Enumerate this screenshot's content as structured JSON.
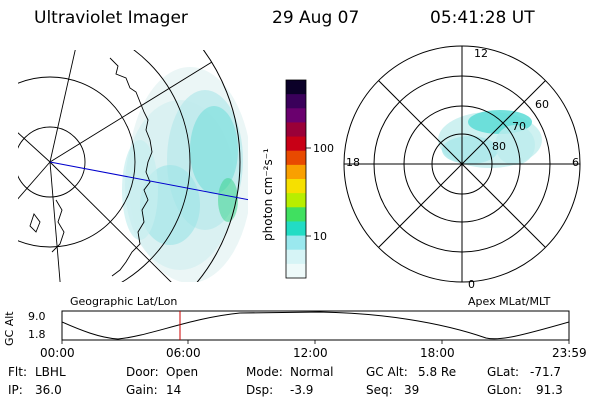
{
  "header": {
    "title": "Ultraviolet Imager",
    "date": "29 Aug 07",
    "time": "05:41:28 UT"
  },
  "left_panel": {
    "caption": "Geographic Lat/Lon"
  },
  "right_panel": {
    "caption": "Apex MLat/MLT",
    "mlt_labels": [
      "12",
      "18",
      "6",
      "0"
    ],
    "mlat_labels": [
      "60",
      "70",
      "80"
    ]
  },
  "colorbar": {
    "unit_label": "photon cm⁻²s⁻¹",
    "tick_labels": [
      "100",
      "10"
    ],
    "colors": [
      "#0b0028",
      "#3a005a",
      "#6a006e",
      "#9a0038",
      "#c80016",
      "#e84a00",
      "#f9a000",
      "#f6e000",
      "#b8ee00",
      "#40e060",
      "#22dcc4",
      "#9ae8ee",
      "#d6f4f6",
      "#eefafa"
    ]
  },
  "altitude_strip": {
    "axis_label": "GC Alt",
    "y_ticks": [
      "9.0",
      "1.8"
    ],
    "x_ticks": [
      "00:00",
      "06:00",
      "12:00",
      "18:00",
      "23:59"
    ]
  },
  "status": {
    "row1": [
      {
        "label": "Flt:",
        "value": "LBHL"
      },
      {
        "label": "Door:",
        "value": "Open"
      },
      {
        "label": "Mode:",
        "value": "Normal"
      },
      {
        "label": "GC Alt:",
        "value": "5.8 Re"
      },
      {
        "label": "GLat:",
        "value": "-71.7"
      }
    ],
    "row2": [
      {
        "label": "IP:",
        "value": "36.0"
      },
      {
        "label": "Gain:",
        "value": "14"
      },
      {
        "label": "Dsp:",
        "value": "-3.9"
      },
      {
        "label": "Seq:",
        "value": "39"
      },
      {
        "label": "GLon:",
        "value": "91.3"
      }
    ]
  }
}
